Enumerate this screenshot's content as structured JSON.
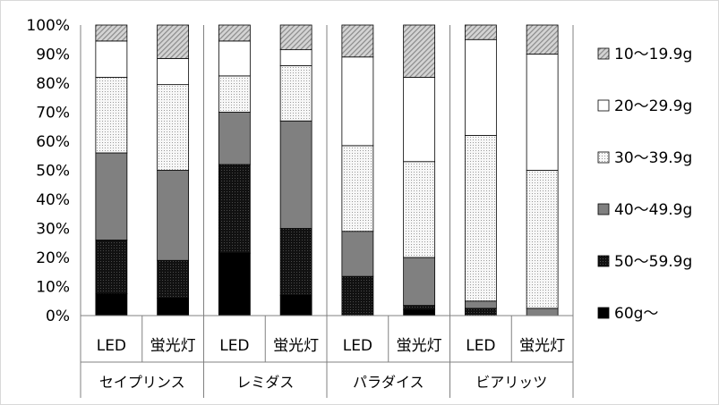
{
  "chart_data": {
    "type": "bar",
    "stacked": "percent",
    "groups": [
      "セイプリンス",
      "レミダス",
      "パラダイス",
      "ビアリッツ"
    ],
    "categories": [
      "LED",
      "蛍光灯",
      "LED",
      "蛍光灯",
      "LED",
      "蛍光灯",
      "LED",
      "蛍光灯"
    ],
    "ylim": [
      0,
      100
    ],
    "yticks": [
      "0%",
      "10%",
      "20%",
      "30%",
      "40%",
      "50%",
      "60%",
      "70%",
      "80%",
      "90%",
      "100%"
    ],
    "legend_position": "right",
    "series": [
      {
        "name": "60g～",
        "color": "#000000",
        "pattern": "solid",
        "values": [
          7.5,
          6,
          21.5,
          7,
          0,
          2,
          0,
          0
        ]
      },
      {
        "name": "50～59.9g",
        "color": "#111111",
        "pattern": "dark",
        "values": [
          18.5,
          13,
          30.5,
          23,
          13.5,
          1.5,
          2.5,
          0
        ]
      },
      {
        "name": "40～49.9g",
        "color": "#808080",
        "pattern": "solid",
        "values": [
          30,
          31,
          18,
          37,
          15.5,
          16.5,
          2.5,
          2.5
        ]
      },
      {
        "name": "30～39.9g",
        "color": "#f2f2f2",
        "pattern": "dots",
        "values": [
          26,
          29.5,
          12.5,
          19,
          29.5,
          33,
          57,
          47.5
        ]
      },
      {
        "name": "20～29.9g",
        "color": "#ffffff",
        "pattern": "solid",
        "values": [
          12.5,
          9,
          12,
          5.5,
          30.5,
          29,
          33,
          40
        ]
      },
      {
        "name": "10～19.9g",
        "color": "#bfbfbf",
        "pattern": "hatch",
        "values": [
          5.5,
          11.5,
          5.5,
          8.5,
          11,
          18,
          5,
          10
        ]
      }
    ]
  }
}
